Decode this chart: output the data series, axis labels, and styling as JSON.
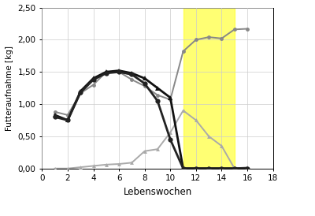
{
  "kraftfutter_kontrolle_x": [
    1,
    2,
    3,
    4,
    5,
    6,
    7,
    8,
    9,
    10,
    11,
    12,
    13,
    14,
    15,
    16
  ],
  "kraftfutter_kontrolle_y": [
    0.88,
    0.83,
    1.17,
    1.3,
    1.5,
    1.5,
    1.38,
    1.28,
    1.14,
    1.07,
    1.82,
    2.0,
    2.04,
    2.02,
    2.16,
    2.17
  ],
  "kraftfutter_versuch_x": [
    1,
    2,
    3,
    4,
    5,
    6,
    7,
    8,
    9,
    10,
    11,
    12,
    13,
    14,
    15,
    16
  ],
  "kraftfutter_versuch_y": [
    0.0,
    0.0,
    0.02,
    0.04,
    0.06,
    0.07,
    0.09,
    0.27,
    0.3,
    0.56,
    0.9,
    0.75,
    0.5,
    0.35,
    0.0,
    0.02
  ],
  "mat_versuch_x": [
    1,
    2,
    3,
    4,
    5,
    6,
    7,
    8,
    9,
    10,
    11,
    12,
    13,
    14,
    15,
    16
  ],
  "mat_versuch_y": [
    0.83,
    0.75,
    1.2,
    1.4,
    1.5,
    1.52,
    1.48,
    1.4,
    1.25,
    1.1,
    0.0,
    0.0,
    0.0,
    0.0,
    0.0,
    0.0
  ],
  "mat_kontrolle_x": [
    1,
    2,
    3,
    4,
    5,
    6,
    7,
    8,
    9,
    10,
    11,
    12,
    13,
    14,
    15,
    16
  ],
  "mat_kontrolle_y": [
    0.8,
    0.75,
    1.18,
    1.38,
    1.48,
    1.5,
    1.46,
    1.32,
    1.05,
    0.45,
    0.0,
    0.0,
    0.0,
    0.0,
    0.0,
    0.0
  ],
  "yellow_zone_x_start": 11,
  "yellow_zone_x_end": 15,
  "yellow_color": "#FFFF00",
  "yellow_alpha": 0.55,
  "color_kf_kontrolle": "#888888",
  "color_kf_versuch": "#aaaaaa",
  "color_mat_versuch": "#111111",
  "color_mat_kontrolle": "#222222",
  "xlabel": "Lebenswochen",
  "ylabel": "Futteraufnahme [kg]",
  "xlim": [
    0,
    18
  ],
  "ylim": [
    0.0,
    2.5
  ],
  "yticks": [
    0.0,
    0.5,
    1.0,
    1.5,
    2.0,
    2.5
  ],
  "ytick_labels": [
    "0,00",
    "0,50",
    "1,00",
    "1,50",
    "2,00",
    "2,50"
  ],
  "xticks": [
    0,
    2,
    4,
    6,
    8,
    10,
    12,
    14,
    16,
    18
  ],
  "figsize": [
    4.0,
    2.74
  ],
  "dpi": 100
}
